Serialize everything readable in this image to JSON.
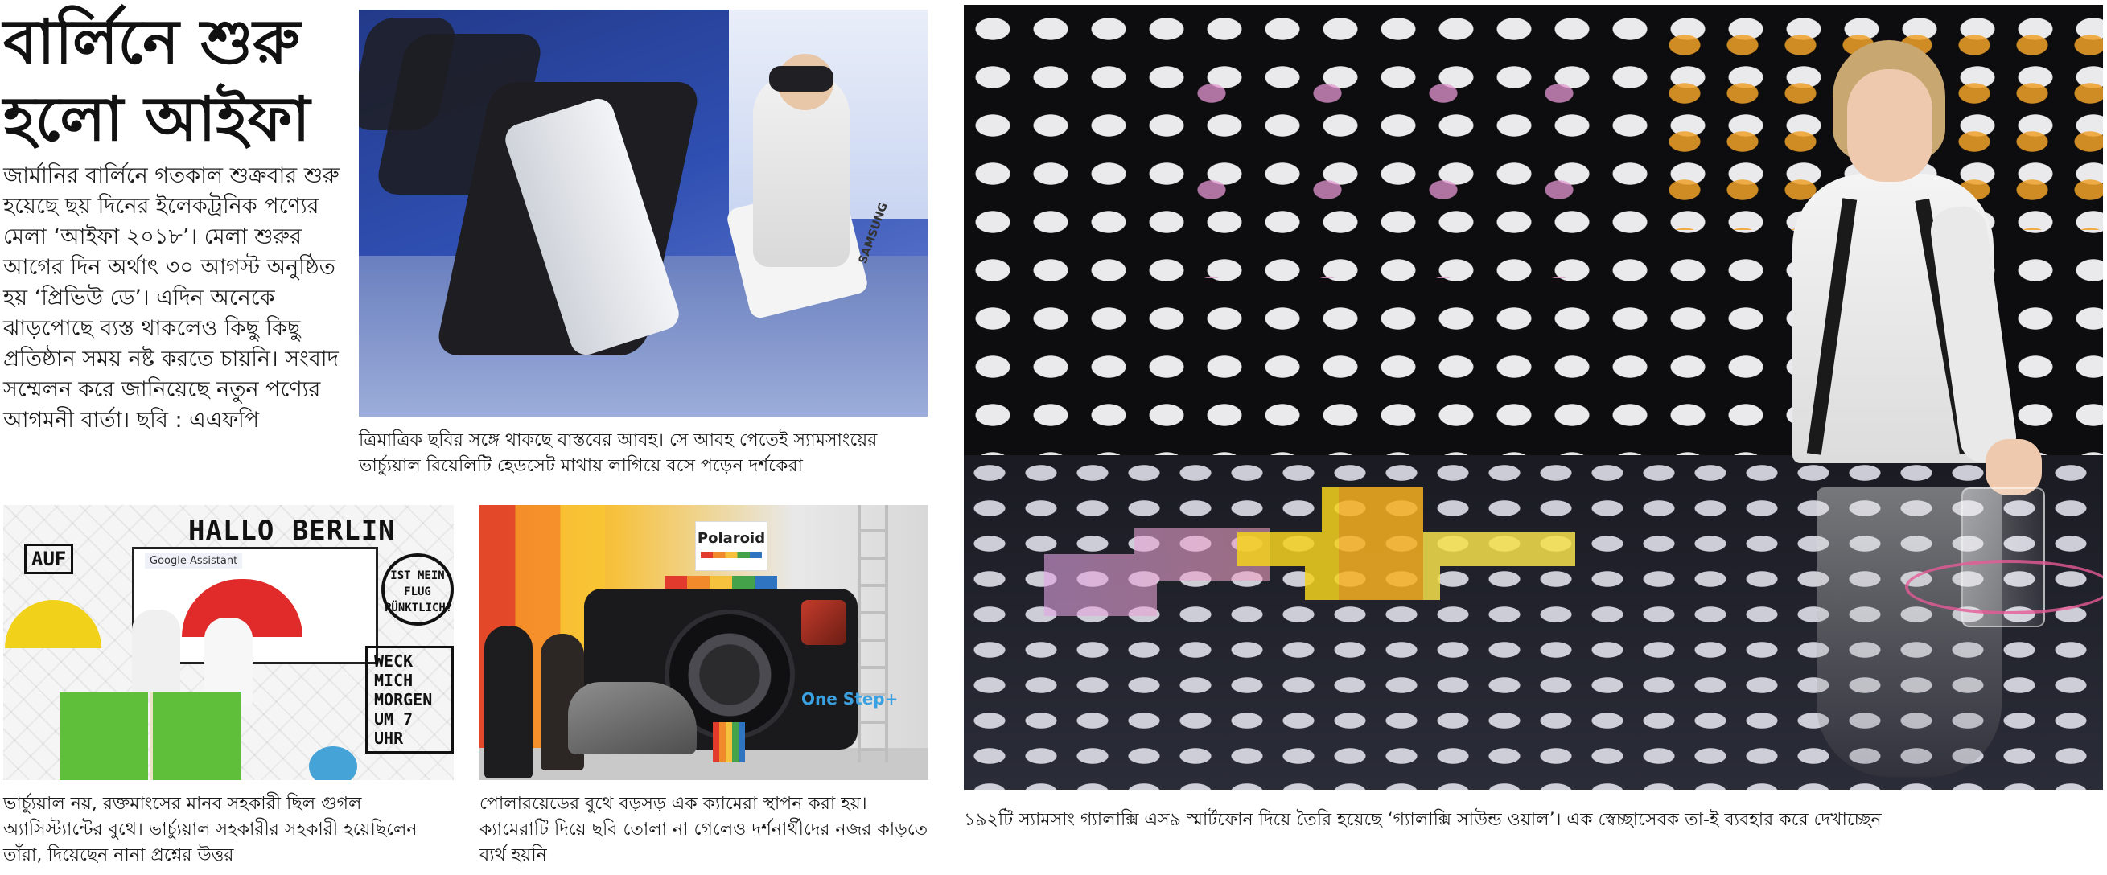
{
  "article": {
    "headline": "বার্লিনে শুরু হলো আইফা",
    "lead": "জার্মানির বার্লিনে গতকাল শুক্রবার শুরু হয়েছে ছয় দিনের ইলেকট্রনিক পণ্যের মেলা ‘আইফা ২০১৮’। মেলা শুরুর আগের দিন অর্থাৎ ৩০ আগস্ট অনুষ্ঠিত হয় ‘প্রিভিউ ডে’। এদিন অনেকে ঝাড়পোছে ব্যস্ত থাকলেও কিছু কিছু প্রতিষ্ঠান সময় নষ্ট করতে চায়নি। সংবাদ সম্মেলন করে জানিয়েছে নতুন পণ্যের আগমনী বার্তা। ছবি : এএফপি"
  },
  "photos": {
    "vr": {
      "caption": "ত্রিমাত্রিক ছবির সঙ্গে থাকছে বাস্তবের আবহ। সে আবহ পেতেই স্যামসাংয়ের ভার্চ্যুয়াল রিয়েলিটি হেডসেট মাথায় লাগিয়ে বসে পড়েন দর্শকেরা",
      "brand_text": "SAMSUNG"
    },
    "hallo_berlin": {
      "caption": "ভার্চ্যুয়াল নয়, রক্তমাংসের মানব সহকারী ছিল গুগল অ্যাসিস্ট্যান্টের বুথে। ভার্চ্যুয়াল সহকারীর সহকারী হয়েছিলেন তাঁরা, দিয়েছেন নানা প্রশ্নের উত্তর",
      "wall_title": "HALLO BERLIN",
      "assistant_label": "Google Assistant",
      "auf_text": "AUF",
      "circle_text": "IST MEIN FLUG PÜNKTLICH?",
      "weck_text": "WECK MICH MORGEN UM 7 UHR"
    },
    "polaroid": {
      "caption": "পোলারয়েডের বুথে বড়সড় এক ক্যামেরা স্থাপন করা হয়। ক্যামেরাটি দিয়ে ছবি তোলা না গেলেও দর্শনার্থীদের নজর কাড়তে ব্যর্থ হয়নি",
      "logo_text": "Polaroid",
      "model_text": "One Step+"
    },
    "galaxy_wall": {
      "caption": "১৯২টি স্যামসাং গ্যালাক্সি এস৯ স্মার্টফোন দিয়ে তৈরি হয়েছে ‘গ্যালাক্সি সাউন্ড ওয়াল’। এক স্বেচ্ছাসেবক তা-ই ব্যবহার করে দেখাচ্ছেন"
    }
  }
}
